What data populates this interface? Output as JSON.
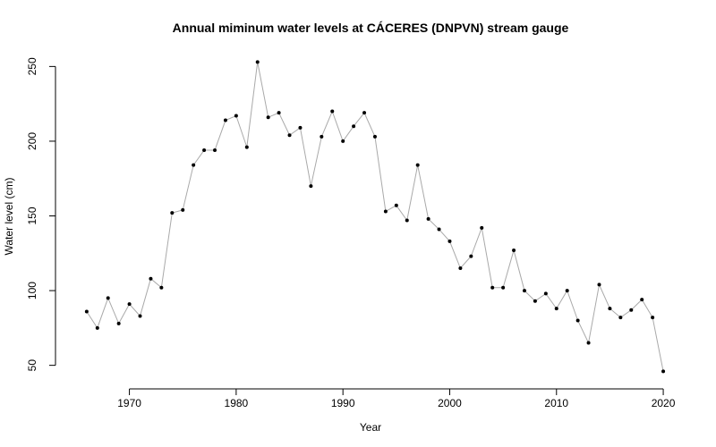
{
  "chart_data": {
    "type": "line",
    "title": "Annual miminum water levels at CÁCERES (DNPVN) stream gauge",
    "xlabel": "Year",
    "ylabel": "Water level (cm)",
    "xlim": [
      1964,
      2021
    ],
    "ylim": [
      42,
      258
    ],
    "xticks": [
      1970,
      1980,
      1990,
      2000,
      2010,
      2020
    ],
    "yticks": [
      50,
      100,
      150,
      200,
      250
    ],
    "grid": false,
    "legend": "none",
    "colors": {
      "line": "#a9a9a9",
      "points": "#000000"
    },
    "x": [
      1966,
      1967,
      1968,
      1969,
      1970,
      1971,
      1972,
      1973,
      1974,
      1975,
      1976,
      1977,
      1978,
      1979,
      1980,
      1981,
      1982,
      1983,
      1984,
      1985,
      1986,
      1987,
      1988,
      1989,
      1990,
      1991,
      1992,
      1993,
      1994,
      1995,
      1996,
      1997,
      1998,
      1999,
      2000,
      2001,
      2002,
      2003,
      2004,
      2005,
      2006,
      2007,
      2008,
      2009,
      2010,
      2011,
      2012,
      2013,
      2014,
      2015,
      2016,
      2017,
      2018,
      2019,
      2020
    ],
    "y": [
      86,
      75,
      95,
      78,
      91,
      83,
      108,
      102,
      152,
      154,
      184,
      194,
      194,
      214,
      217,
      196,
      253,
      216,
      219,
      204,
      209,
      170,
      203,
      220,
      200,
      210,
      219,
      203,
      153,
      157,
      147,
      184,
      148,
      141,
      133,
      115,
      123,
      142,
      102,
      102,
      127,
      100,
      93,
      98,
      88,
      100,
      80,
      65,
      104,
      88,
      82,
      87,
      94,
      82,
      46
    ]
  }
}
